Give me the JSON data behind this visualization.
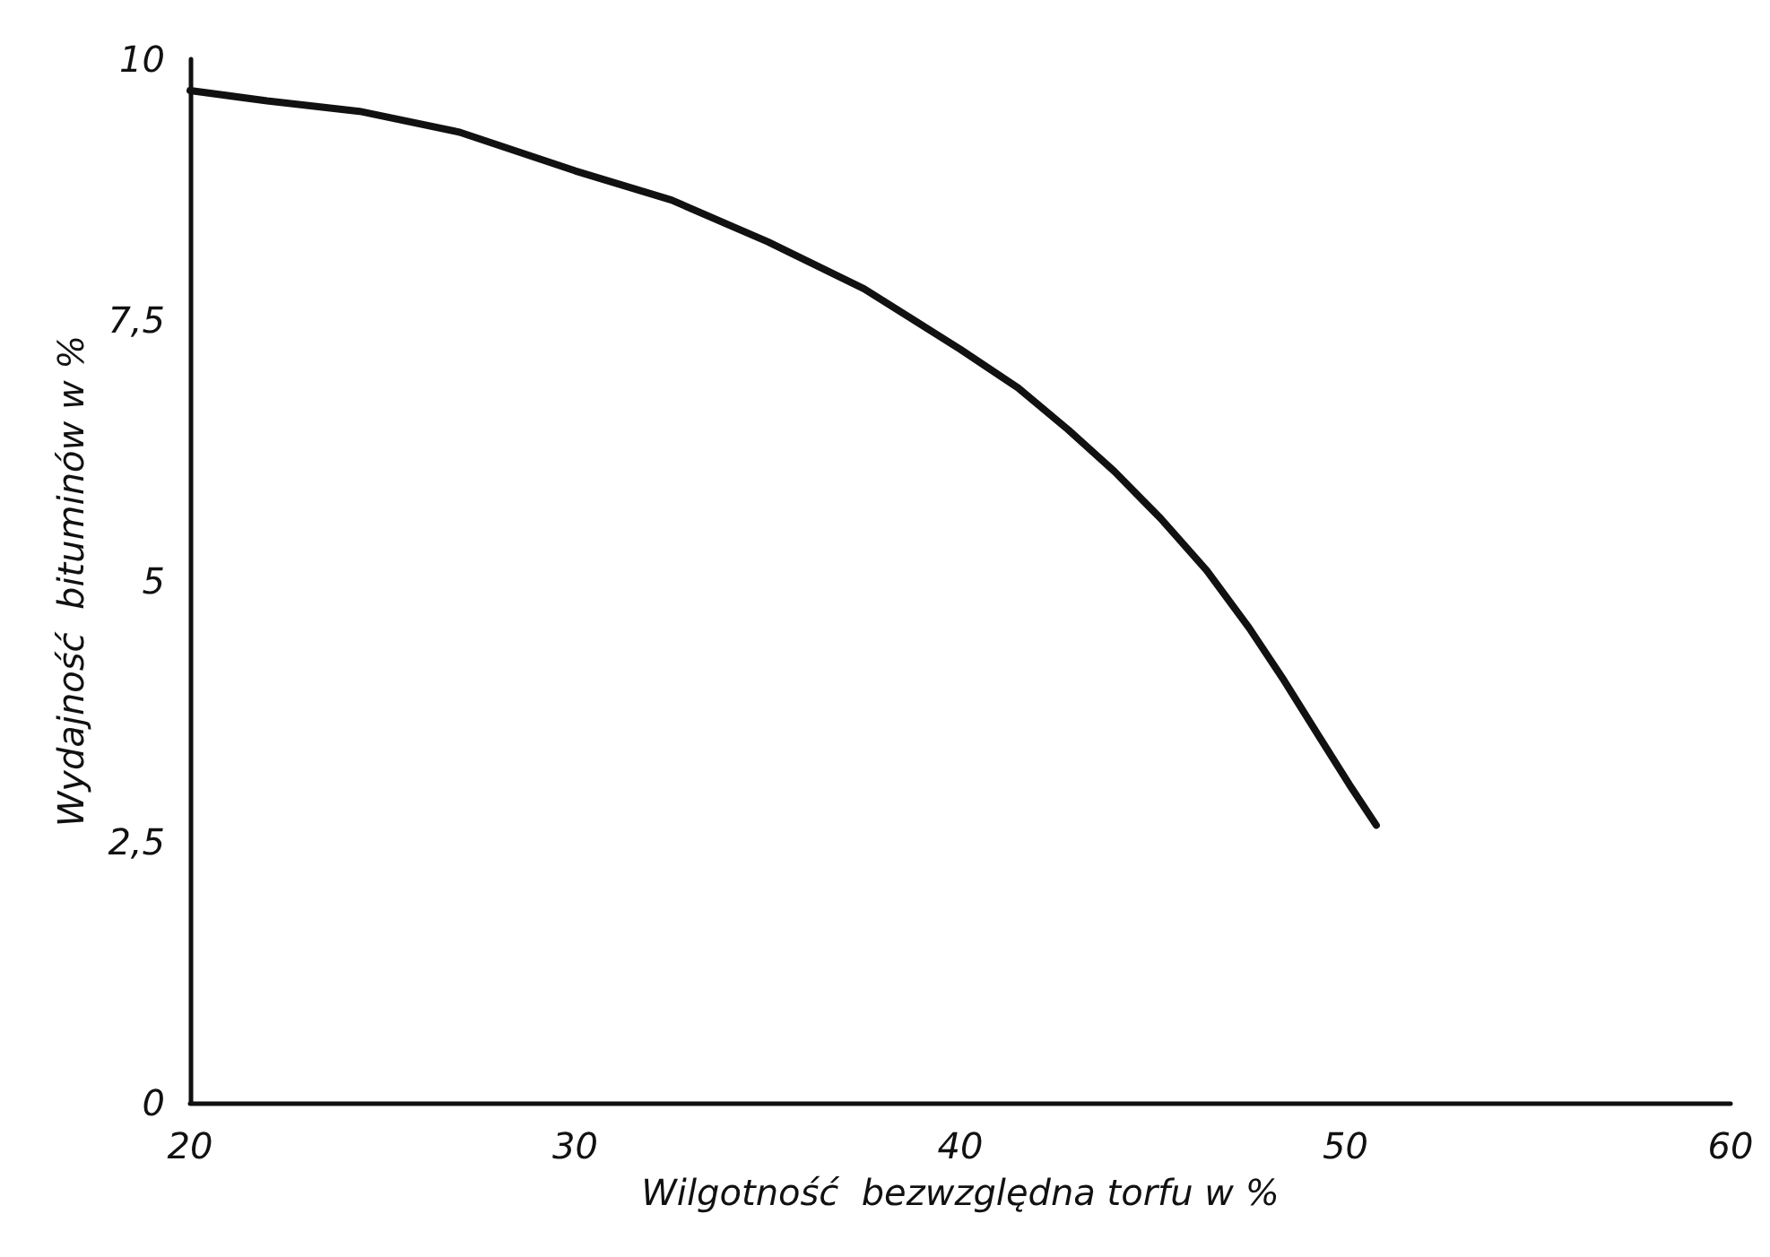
{
  "chart_data": {
    "type": "line",
    "xlabel": "Wilgotność  bezwzględna torfu w %",
    "ylabel": "Wydajność  bituminów w %",
    "xlim": [
      20,
      60
    ],
    "xticks": [
      20,
      30,
      40,
      50,
      60
    ],
    "ylim": [
      0,
      10
    ],
    "yticks": [
      0,
      {
        "value": 2.5,
        "label": "2,5"
      },
      5,
      {
        "value": 7.5,
        "label": "7,5"
      },
      10
    ],
    "grid": false,
    "marker": "none",
    "line_style": "solid",
    "series": [
      {
        "color": "#111111",
        "x": [
          20,
          22,
          24.4,
          27,
          30,
          32.5,
          35,
          37.5,
          40,
          41.5,
          42.8,
          44,
          45.2,
          46.4,
          47.5,
          48.4,
          49.3,
          50.1,
          50.8
        ],
        "values": [
          9.7,
          9.6,
          9.5,
          9.3,
          8.93,
          8.65,
          8.25,
          7.8,
          7.22,
          6.85,
          6.45,
          6.05,
          5.6,
          5.1,
          4.55,
          4.05,
          3.52,
          3.05,
          2.66
        ]
      }
    ]
  }
}
